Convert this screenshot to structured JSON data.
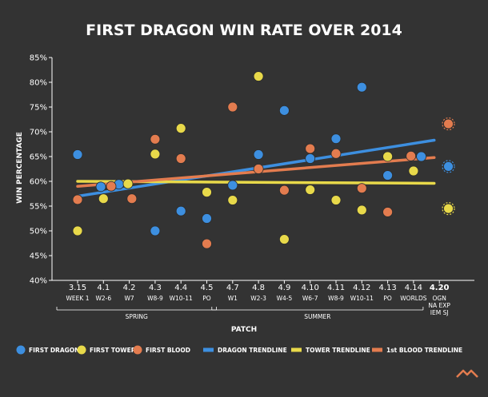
{
  "chart_data": {
    "type": "scatter",
    "title": "FIRST DRAGON WIN RATE OVER 2014",
    "xlabel": "PATCH",
    "ylabel": "WIN PERCENTAGE",
    "ylim": [
      40,
      85
    ],
    "yticks": [
      "40%",
      "45%",
      "50%",
      "55%",
      "60%",
      "65%",
      "70%",
      "75%",
      "80%",
      "85%"
    ],
    "grid": false,
    "legend_position": "bottom",
    "categories": [
      {
        "label": "3.15",
        "sub": [
          "WEEK 1"
        ]
      },
      {
        "label": "4.1",
        "sub": [
          "W2-6"
        ]
      },
      {
        "label": "4.2",
        "sub": [
          "W7"
        ]
      },
      {
        "label": "4.3",
        "sub": [
          "W8-9"
        ]
      },
      {
        "label": "4.4",
        "sub": [
          "W10-11"
        ]
      },
      {
        "label": "4.5",
        "sub": [
          "PO"
        ]
      },
      {
        "label": "4.7",
        "sub": [
          "W1"
        ]
      },
      {
        "label": "4.8",
        "sub": [
          "W2-3"
        ]
      },
      {
        "label": "4.9",
        "sub": [
          "W4-5"
        ]
      },
      {
        "label": "4.10",
        "sub": [
          "W6-7"
        ]
      },
      {
        "label": "4.11",
        "sub": [
          "W8-9"
        ]
      },
      {
        "label": "4.12",
        "sub": [
          "W10-11"
        ]
      },
      {
        "label": "4.13",
        "sub": [
          "PO"
        ]
      },
      {
        "label": "4.14",
        "sub": [
          "WORLDS"
        ]
      },
      {
        "label": "4.20",
        "sub": [
          "OGN",
          "NA EXP",
          "IEM SJ"
        ],
        "bold": true
      }
    ],
    "groups": [
      {
        "name": "SPRING",
        "from": 0,
        "to": 5
      },
      {
        "name": "SUMMER",
        "from": 6,
        "to": 13
      }
    ],
    "series": [
      {
        "name": "FIRST DRAGON",
        "color": "#3d8fe0",
        "points": [
          {
            "x": 0,
            "y": 65.4
          },
          {
            "x": 0.9,
            "y": 58.9
          },
          {
            "x": 1.6,
            "y": 59.4
          },
          {
            "x": 3,
            "y": 50
          },
          {
            "x": 4,
            "y": 54
          },
          {
            "x": 5,
            "y": 52.5
          },
          {
            "x": 6,
            "y": 59.2
          },
          {
            "x": 7,
            "y": 65.4
          },
          {
            "x": 8,
            "y": 74.3
          },
          {
            "x": 9,
            "y": 64.6
          },
          {
            "x": 10,
            "y": 68.6
          },
          {
            "x": 11,
            "y": 79
          },
          {
            "x": 12,
            "y": 61.2
          },
          {
            "x": 13.3,
            "y": 65
          },
          {
            "x": 14.35,
            "y": 63
          }
        ]
      },
      {
        "name": "FIRST TOWER",
        "color": "#e8d94a",
        "points": [
          {
            "x": 0,
            "y": 50
          },
          {
            "x": 1,
            "y": 56.5
          },
          {
            "x": 1.95,
            "y": 59.5
          },
          {
            "x": 3,
            "y": 65.5
          },
          {
            "x": 4,
            "y": 70.7
          },
          {
            "x": 5,
            "y": 57.8
          },
          {
            "x": 6,
            "y": 56.2
          },
          {
            "x": 7,
            "y": 81.2
          },
          {
            "x": 8,
            "y": 48.3
          },
          {
            "x": 9,
            "y": 58.3
          },
          {
            "x": 10,
            "y": 56.2
          },
          {
            "x": 11,
            "y": 54.2
          },
          {
            "x": 12,
            "y": 65
          },
          {
            "x": 13,
            "y": 62.1
          },
          {
            "x": 14.35,
            "y": 54.5
          }
        ]
      },
      {
        "name": "FIRST BLOOD",
        "color": "#e37c4f",
        "points": [
          {
            "x": 0,
            "y": 56.3
          },
          {
            "x": 1.3,
            "y": 59
          },
          {
            "x": 2.1,
            "y": 56.5
          },
          {
            "x": 3,
            "y": 68.5
          },
          {
            "x": 4,
            "y": 64.6
          },
          {
            "x": 5,
            "y": 47.4
          },
          {
            "x": 6,
            "y": 75
          },
          {
            "x": 7,
            "y": 62.5
          },
          {
            "x": 8,
            "y": 58.2
          },
          {
            "x": 9,
            "y": 66.6
          },
          {
            "x": 10,
            "y": 65.6
          },
          {
            "x": 11,
            "y": 58.6
          },
          {
            "x": 12,
            "y": 53.8
          },
          {
            "x": 12.9,
            "y": 65.1
          },
          {
            "x": 14.35,
            "y": 71.6
          }
        ]
      }
    ],
    "trendlines": [
      {
        "name": "DRAGON TRENDLINE",
        "color": "#3d8fe0",
        "from": {
          "x": 0,
          "y": 57
        },
        "to": {
          "x": 13.8,
          "y": 68.3
        }
      },
      {
        "name": "TOWER TRENDLINE",
        "color": "#e8d94a",
        "from": {
          "x": 0,
          "y": 60
        },
        "to": {
          "x": 13.8,
          "y": 59.6
        }
      },
      {
        "name": "1st BLOOD TRENDLINE",
        "color": "#e37c4f",
        "from": {
          "x": 0,
          "y": 59
        },
        "to": {
          "x": 13.8,
          "y": 64.8
        }
      }
    ]
  }
}
